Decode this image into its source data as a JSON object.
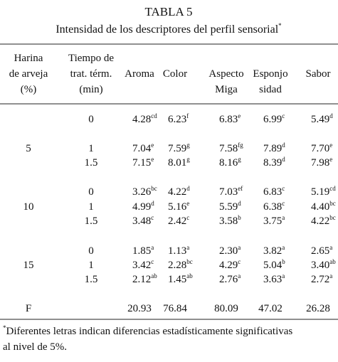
{
  "title": "TABLA 5",
  "subtitle": {
    "text": "Intensidad de los descriptores del perfil sensorial",
    "mark": "*"
  },
  "header": {
    "harina": [
      "Harina",
      "de arveja",
      "(%)"
    ],
    "tiempo": [
      "Tiempo de",
      "trat. térm.",
      "(min)"
    ],
    "descriptors": [
      [
        "Aroma"
      ],
      [
        "Color"
      ],
      [
        "Aspecto",
        "Miga"
      ],
      [
        "Esponjo",
        "sidad"
      ],
      [
        "Sabor"
      ]
    ]
  },
  "rows": [
    {
      "time": "0",
      "values": [
        {
          "value": "4.28",
          "sup": "cd"
        },
        {
          "value": "6.23",
          "sup": "f"
        },
        {
          "value": "6.83",
          "sup": "e"
        },
        {
          "value": "6.99",
          "sup": "c"
        },
        {
          "value": "5.49",
          "sup": "d"
        }
      ]
    },
    {
      "harina": "5",
      "time": "1",
      "values": [
        {
          "value": "7.04",
          "sup": "e"
        },
        {
          "value": "7.59",
          "sup": "g"
        },
        {
          "value": "7.58",
          "sup": "fg"
        },
        {
          "value": "7.89",
          "sup": "d"
        },
        {
          "value": "7.70",
          "sup": "e"
        }
      ]
    },
    {
      "time": "1.5",
      "values": [
        {
          "value": "7.15",
          "sup": "e"
        },
        {
          "value": "8.01",
          "sup": "g"
        },
        {
          "value": "8.16",
          "sup": "g"
        },
        {
          "value": "8.39",
          "sup": "d"
        },
        {
          "value": "7.98",
          "sup": "e"
        }
      ]
    },
    {
      "time": "0",
      "values": [
        {
          "value": "3.26",
          "sup": "bc"
        },
        {
          "value": "4.22",
          "sup": "d"
        },
        {
          "value": "7.03",
          "sup": "ef"
        },
        {
          "value": "6.83",
          "sup": "c"
        },
        {
          "value": "5.19",
          "sup": "cd"
        }
      ]
    },
    {
      "harina": "10",
      "time": "1",
      "values": [
        {
          "value": "4.99",
          "sup": "d"
        },
        {
          "value": "5.16",
          "sup": "e"
        },
        {
          "value": "5.59",
          "sup": "d"
        },
        {
          "value": "6.38",
          "sup": "c"
        },
        {
          "value": "4.40",
          "sup": "bc"
        }
      ]
    },
    {
      "time": "1.5",
      "values": [
        {
          "value": "3.48",
          "sup": "c"
        },
        {
          "value": "2.42",
          "sup": "c"
        },
        {
          "value": "3.58",
          "sup": "b"
        },
        {
          "value": "3.75",
          "sup": "a"
        },
        {
          "value": "4.22",
          "sup": "bc"
        }
      ]
    },
    {
      "time": "0",
      "values": [
        {
          "value": "1.85",
          "sup": "a"
        },
        {
          "value": "1.13",
          "sup": "a"
        },
        {
          "value": "2.30",
          "sup": "a"
        },
        {
          "value": "3.82",
          "sup": "a"
        },
        {
          "value": "2.65",
          "sup": "a"
        }
      ]
    },
    {
      "harina": "15",
      "time": "1",
      "values": [
        {
          "value": "3.42",
          "sup": "c"
        },
        {
          "value": "2.28",
          "sup": "bc"
        },
        {
          "value": "4.29",
          "sup": "c"
        },
        {
          "value": "5.04",
          "sup": "b"
        },
        {
          "value": "3.40",
          "sup": "ab"
        }
      ]
    },
    {
      "time": "1.5",
      "values": [
        {
          "value": "2.12",
          "sup": "ab"
        },
        {
          "value": "1.45",
          "sup": "ab"
        },
        {
          "value": "2.76",
          "sup": "a"
        },
        {
          "value": "3.63",
          "sup": "a"
        },
        {
          "value": "2.72",
          "sup": "a"
        }
      ]
    }
  ],
  "f_row": {
    "label": "F",
    "values": [
      "20.93",
      "76.84",
      "80.09",
      "47.02",
      "26.28"
    ]
  },
  "footnote": {
    "mark": "*",
    "lines": [
      "Diferentes letras indican diferencias estadísticamente significativas",
      "al nivel de 5%."
    ]
  }
}
